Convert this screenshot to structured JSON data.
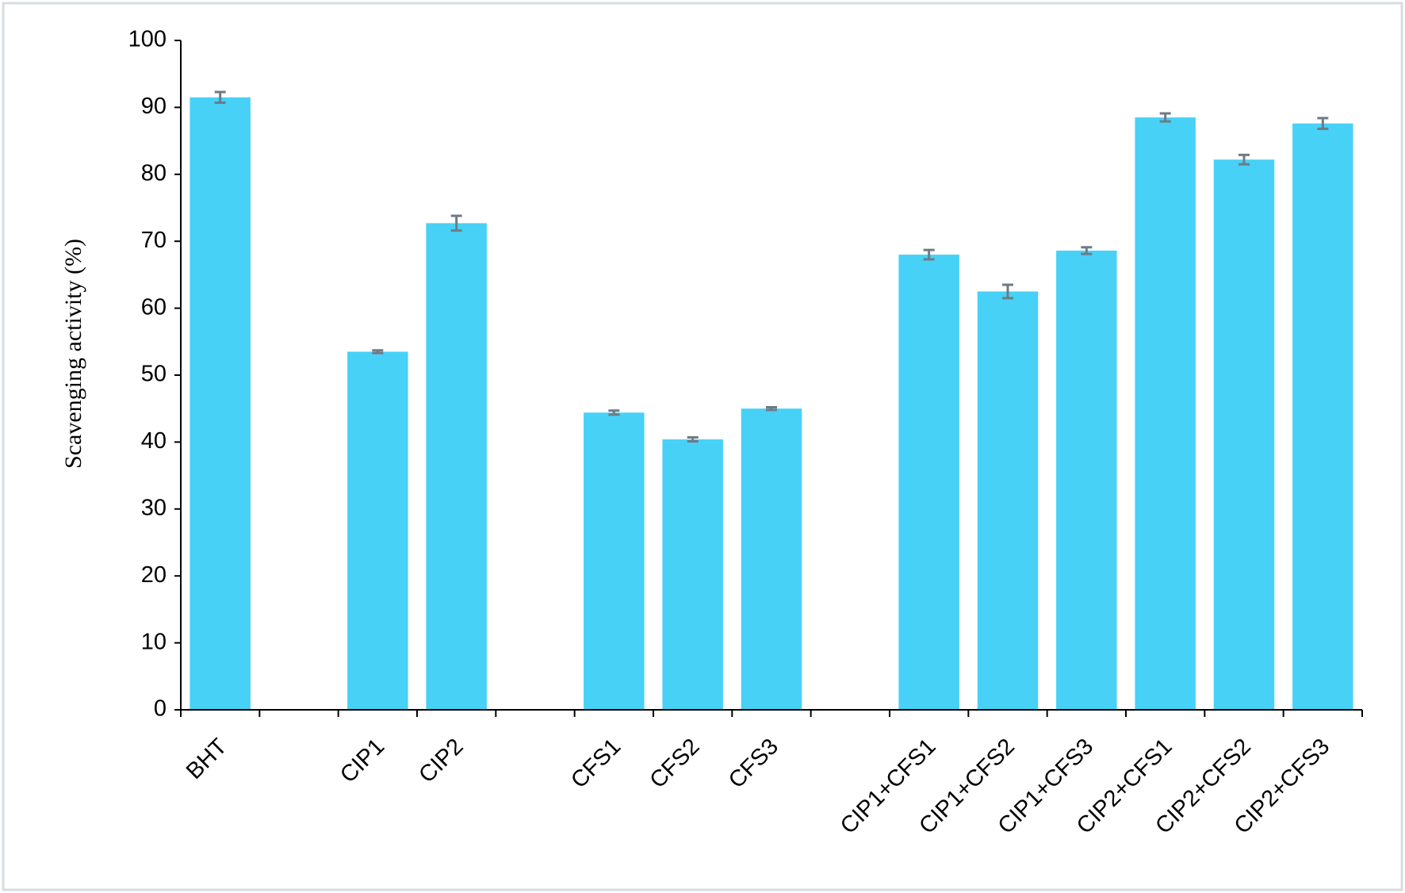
{
  "chart_data": {
    "type": "bar",
    "y_label": "Scavenging activity (%)",
    "categories": [
      "BHT",
      null,
      "CIP1",
      "CIP2",
      null,
      "CFS1",
      "CFS2",
      "CFS3",
      null,
      "CIP1+CFS1",
      "CIP1+CFS2",
      "CIP1+CFS3",
      "CIP2+CFS1",
      "CIP2+CFS2",
      "CIP2+CFS3"
    ],
    "values": [
      91.5,
      null,
      53.5,
      72.7,
      null,
      44.4,
      40.4,
      45.0,
      null,
      68.0,
      62.5,
      68.6,
      88.5,
      82.2,
      87.6
    ],
    "errors": [
      0.8,
      null,
      0.2,
      1.1,
      null,
      0.3,
      0.3,
      0.2,
      null,
      0.7,
      1.0,
      0.5,
      0.6,
      0.7,
      0.8
    ],
    "color": "#47d1f7",
    "error_color": "#6d7b85",
    "ylim": [
      0,
      100
    ],
    "yticks": [
      0,
      10,
      20,
      30,
      40,
      50,
      60,
      70,
      80,
      90,
      100
    ]
  }
}
